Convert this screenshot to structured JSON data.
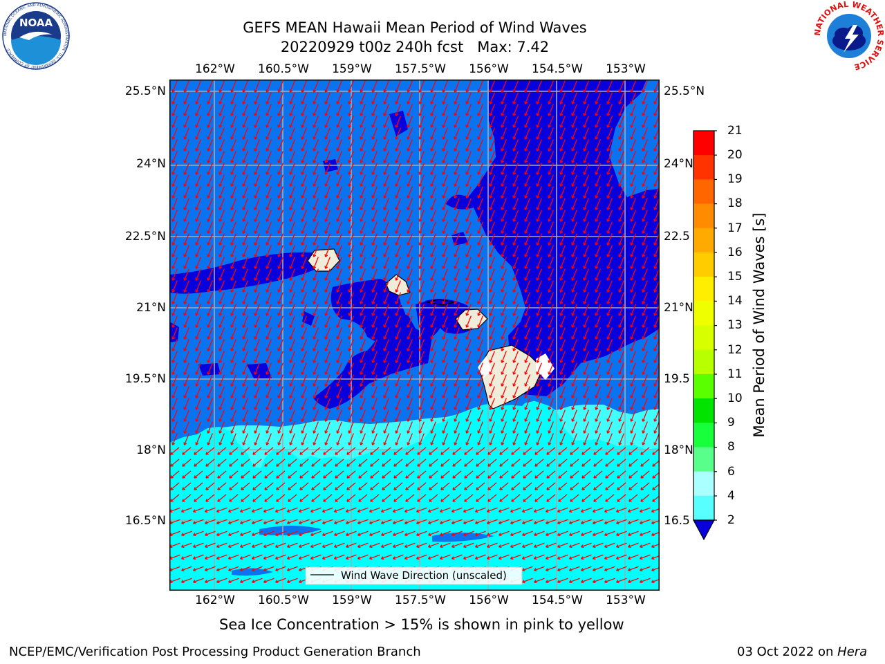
{
  "titles": {
    "line1": "GEFS MEAN Hawaii Mean Period of Wind Waves",
    "line2": "20220929 t00z 240h fcst   Max: 7.42"
  },
  "logos": {
    "left": "NOAA",
    "left_ring_text": "NATIONAL OCEANIC AND ATMOSPHERIC ADMINISTRATION · U.S. DEPARTMENT OF COMMERCE",
    "right_ring_text": "NATIONAL WEATHER SERVICE"
  },
  "map": {
    "lon_labels": [
      "162°W",
      "160.5°W",
      "159°W",
      "157.5°W",
      "156°W",
      "154.5°W",
      "153°W"
    ],
    "lat_labels_left": [
      "25.5°N",
      "24°N",
      "22.5°N",
      "21°N",
      "19.5°N",
      "18°N",
      "16.5°N"
    ],
    "lat_labels_right": [
      "25.5°N",
      "24°N",
      "22.5",
      "21°N",
      "19.5",
      "18°N",
      "16.5"
    ],
    "legend_label": "Wind Wave Direction (unscaled)",
    "colors": {
      "ocean_2_4": "#0a74f0",
      "ocean_below_2": "#0800dc",
      "ocean_4_6": "#00ffff",
      "ocean_6_8": "#40ffff",
      "land": "#efecd9",
      "arrows": "#ff0000",
      "grid": "#a9a9a9"
    }
  },
  "colorbar": {
    "title": "Mean Period of Wind Waves [s]",
    "ticks": [
      "21",
      "20",
      "19",
      "18",
      "17",
      "16",
      "15",
      "14",
      "13",
      "12",
      "11",
      "10",
      "9",
      "8",
      "6",
      "4",
      "2"
    ],
    "colors": [
      "#ff0000",
      "#ff3300",
      "#ff6600",
      "#ff8c00",
      "#ffaa00",
      "#ffcc00",
      "#ffee00",
      "#f0ff00",
      "#d8ff00",
      "#b8ff00",
      "#5aff00",
      "#00e400",
      "#18ff3c",
      "#58ff8a",
      "#aaffff",
      "#58ffff",
      "#00ffff",
      "#0a74f0"
    ],
    "extend_color": "#0800dc"
  },
  "footer": {
    "note": "Sea Ice Concentration > 15% is shown in pink to yellow",
    "left": "NCEP/EMC/Verification Post Processing Product Generation Branch",
    "right_prefix": "03 Oct 2022 on ",
    "right_host": "Hera"
  }
}
